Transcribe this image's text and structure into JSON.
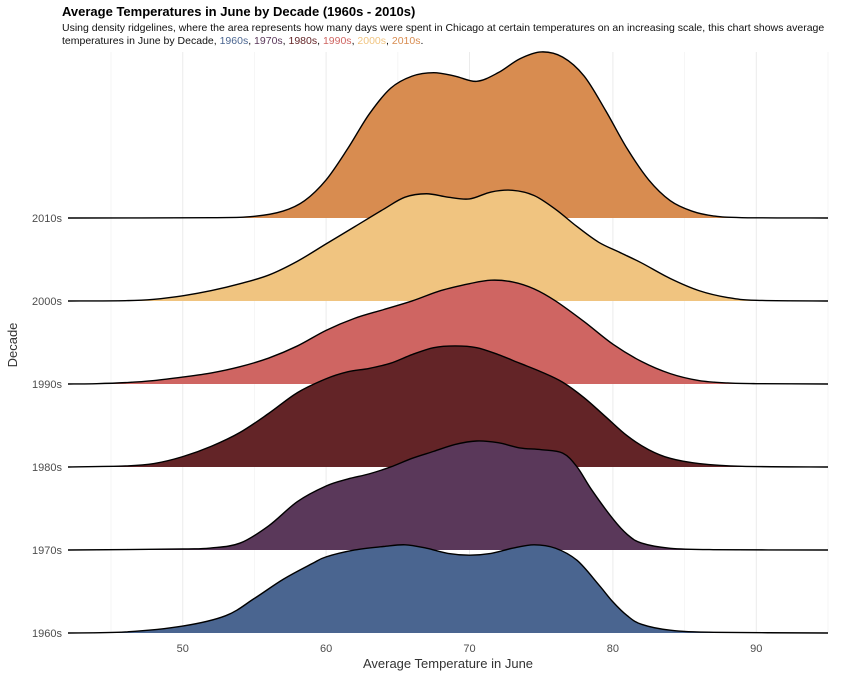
{
  "title": "Average Temperatures in June by Decade (1960s - 2010s)",
  "subtitle": {
    "intro": "Using density ridgelines, where the area represents how many days were spent in Chicago at certain temperatures on an increasing scale, this chart shows average temperatures in June by Decade, ",
    "sep": ", ",
    "end": ".",
    "decades": [
      {
        "label": "1960s",
        "color": "#4a6590"
      },
      {
        "label": "1970s",
        "color": "#5a385a"
      },
      {
        "label": "1980s",
        "color": "#632427"
      },
      {
        "label": "1990s",
        "color": "#cf6562"
      },
      {
        "label": "2000s",
        "color": "#f0c480"
      },
      {
        "label": "2010s",
        "color": "#d88c50"
      }
    ]
  },
  "chart_data": {
    "type": "area",
    "subtype": "density ridgeline",
    "xlabel": "Average Temperature in June",
    "ylabel": "Decade",
    "xlim": [
      42,
      95
    ],
    "xticks": [
      50,
      60,
      70,
      80,
      90
    ],
    "grid": "vertical major and minor lines",
    "legend": "none (colors keyed in subtitle)",
    "series": [
      {
        "name": "1960s",
        "color": "#4a6590",
        "points": [
          [
            42,
            0
          ],
          [
            46,
            0.003
          ],
          [
            50,
            0.02
          ],
          [
            53,
            0.05
          ],
          [
            55,
            0.1
          ],
          [
            57,
            0.155
          ],
          [
            59,
            0.2
          ],
          [
            60,
            0.22
          ],
          [
            62,
            0.24
          ],
          [
            64,
            0.25
          ],
          [
            65.5,
            0.255
          ],
          [
            67,
            0.245
          ],
          [
            68.5,
            0.23
          ],
          [
            70,
            0.225
          ],
          [
            71.5,
            0.23
          ],
          [
            73,
            0.245
          ],
          [
            74.5,
            0.255
          ],
          [
            76,
            0.245
          ],
          [
            77.5,
            0.21
          ],
          [
            79,
            0.14
          ],
          [
            80,
            0.09
          ],
          [
            81,
            0.05
          ],
          [
            82,
            0.025
          ],
          [
            84,
            0.008
          ],
          [
            87,
            0.002
          ],
          [
            95,
            0
          ]
        ]
      },
      {
        "name": "1970s",
        "color": "#5a385a",
        "points": [
          [
            42,
            0
          ],
          [
            50,
            0.003
          ],
          [
            52,
            0.006
          ],
          [
            54,
            0.02
          ],
          [
            56,
            0.07
          ],
          [
            58,
            0.14
          ],
          [
            60,
            0.185
          ],
          [
            61.5,
            0.205
          ],
          [
            63,
            0.22
          ],
          [
            64.5,
            0.24
          ],
          [
            66,
            0.265
          ],
          [
            67.5,
            0.285
          ],
          [
            69,
            0.305
          ],
          [
            70.5,
            0.315
          ],
          [
            72,
            0.31
          ],
          [
            73.5,
            0.295
          ],
          [
            75,
            0.29
          ],
          [
            76.5,
            0.28
          ],
          [
            77.5,
            0.24
          ],
          [
            78.5,
            0.175
          ],
          [
            80,
            0.09
          ],
          [
            81,
            0.045
          ],
          [
            82,
            0.02
          ],
          [
            84,
            0.005
          ],
          [
            87,
            0.001
          ],
          [
            95,
            0
          ]
        ]
      },
      {
        "name": "1980s",
        "color": "#632427",
        "points": [
          [
            42,
            0
          ],
          [
            46,
            0.003
          ],
          [
            48,
            0.01
          ],
          [
            50,
            0.03
          ],
          [
            52,
            0.06
          ],
          [
            54,
            0.1
          ],
          [
            56,
            0.155
          ],
          [
            58,
            0.215
          ],
          [
            60,
            0.255
          ],
          [
            61.5,
            0.275
          ],
          [
            63,
            0.285
          ],
          [
            64.5,
            0.3
          ],
          [
            66,
            0.325
          ],
          [
            67.5,
            0.345
          ],
          [
            69,
            0.35
          ],
          [
            70.5,
            0.345
          ],
          [
            72,
            0.325
          ],
          [
            73.5,
            0.3
          ],
          [
            75,
            0.275
          ],
          [
            76.5,
            0.245
          ],
          [
            78,
            0.2
          ],
          [
            79.5,
            0.145
          ],
          [
            81,
            0.09
          ],
          [
            82.5,
            0.05
          ],
          [
            84,
            0.025
          ],
          [
            86,
            0.01
          ],
          [
            89,
            0.002
          ],
          [
            95,
            0
          ]
        ]
      },
      {
        "name": "1990s",
        "color": "#cf6562",
        "points": [
          [
            42,
            0
          ],
          [
            44,
            0.001
          ],
          [
            46,
            0.004
          ],
          [
            48,
            0.01
          ],
          [
            50,
            0.02
          ],
          [
            52,
            0.032
          ],
          [
            54,
            0.05
          ],
          [
            56,
            0.075
          ],
          [
            58,
            0.11
          ],
          [
            60,
            0.155
          ],
          [
            62,
            0.19
          ],
          [
            64,
            0.215
          ],
          [
            66,
            0.24
          ],
          [
            68,
            0.27
          ],
          [
            70,
            0.29
          ],
          [
            71.5,
            0.3
          ],
          [
            73,
            0.295
          ],
          [
            74.5,
            0.275
          ],
          [
            76,
            0.24
          ],
          [
            78,
            0.18
          ],
          [
            80,
            0.115
          ],
          [
            82,
            0.065
          ],
          [
            84,
            0.03
          ],
          [
            86,
            0.01
          ],
          [
            88,
            0.003
          ],
          [
            90,
            0.001
          ],
          [
            95,
            0
          ]
        ]
      },
      {
        "name": "2000s",
        "color": "#f0c480",
        "points": [
          [
            42,
            0
          ],
          [
            46,
            0.001
          ],
          [
            48,
            0.005
          ],
          [
            50,
            0.015
          ],
          [
            52,
            0.03
          ],
          [
            54,
            0.05
          ],
          [
            56,
            0.075
          ],
          [
            58,
            0.115
          ],
          [
            60,
            0.165
          ],
          [
            62,
            0.215
          ],
          [
            64,
            0.265
          ],
          [
            65.5,
            0.3
          ],
          [
            67,
            0.31
          ],
          [
            68.5,
            0.3
          ],
          [
            70,
            0.295
          ],
          [
            71.5,
            0.315
          ],
          [
            73,
            0.32
          ],
          [
            74.5,
            0.305
          ],
          [
            76,
            0.265
          ],
          [
            77.5,
            0.215
          ],
          [
            79,
            0.17
          ],
          [
            80.5,
            0.14
          ],
          [
            82,
            0.11
          ],
          [
            84,
            0.065
          ],
          [
            86,
            0.03
          ],
          [
            88,
            0.01
          ],
          [
            90,
            0.002
          ],
          [
            95,
            0
          ]
        ]
      },
      {
        "name": "2010s",
        "color": "#d88c50",
        "points": [
          [
            42,
            0
          ],
          [
            52,
            0.001
          ],
          [
            55,
            0.005
          ],
          [
            57,
            0.02
          ],
          [
            58.5,
            0.05
          ],
          [
            60,
            0.11
          ],
          [
            61.5,
            0.2
          ],
          [
            63,
            0.3
          ],
          [
            64.5,
            0.375
          ],
          [
            66,
            0.41
          ],
          [
            67.5,
            0.42
          ],
          [
            69,
            0.41
          ],
          [
            70.5,
            0.395
          ],
          [
            72,
            0.42
          ],
          [
            73.5,
            0.46
          ],
          [
            75,
            0.48
          ],
          [
            76.5,
            0.465
          ],
          [
            78,
            0.41
          ],
          [
            79.5,
            0.31
          ],
          [
            81,
            0.2
          ],
          [
            82.5,
            0.11
          ],
          [
            84,
            0.05
          ],
          [
            85.5,
            0.02
          ],
          [
            87,
            0.006
          ],
          [
            89,
            0.001
          ],
          [
            95,
            0
          ]
        ]
      }
    ]
  }
}
